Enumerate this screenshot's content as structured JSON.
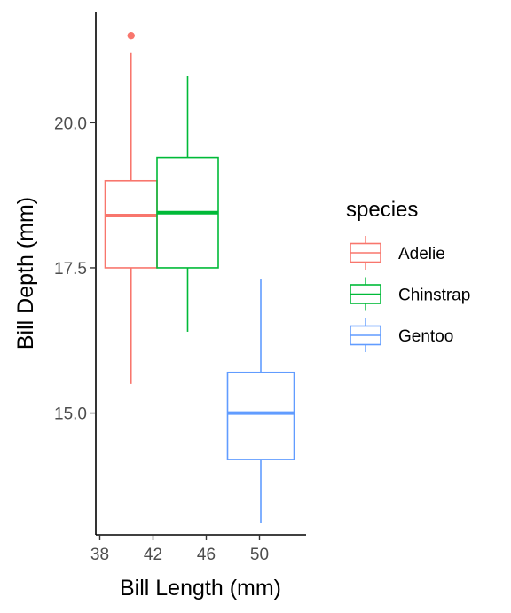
{
  "chart_data": {
    "type": "boxplot",
    "title": "",
    "xlabel": "Bill Length (mm)",
    "ylabel": "Bill Depth (mm)",
    "xlim": [
      37.7,
      53.5
    ],
    "ylim": [
      12.9,
      21.9
    ],
    "x_ticks": [
      {
        "value": 38,
        "label": "38"
      },
      {
        "value": 42,
        "label": "42"
      },
      {
        "value": 46,
        "label": "46"
      },
      {
        "value": 50,
        "label": "50"
      }
    ],
    "y_ticks": [
      {
        "value": 15.0,
        "label": "15.0"
      },
      {
        "value": 17.5,
        "label": "17.5"
      },
      {
        "value": 20.0,
        "label": "20.0"
      }
    ],
    "grid": false,
    "legend": {
      "title": "species",
      "position": "right"
    },
    "series": [
      {
        "name": "Adelie",
        "color": "#F8766D",
        "x_min": 38.4,
        "x_max": 42.3,
        "lower_whisker": 15.5,
        "q1": 17.5,
        "median": 18.4,
        "q3": 19.0,
        "upper_whisker": 21.2,
        "outliers": [
          21.5
        ]
      },
      {
        "name": "Chinstrap",
        "color": "#00BA38",
        "x_min": 42.3,
        "x_max": 46.9,
        "lower_whisker": 16.4,
        "q1": 17.5,
        "median": 18.45,
        "q3": 19.4,
        "upper_whisker": 20.8,
        "outliers": []
      },
      {
        "name": "Gentoo",
        "color": "#619CFF",
        "x_min": 47.6,
        "x_max": 52.6,
        "lower_whisker": 13.1,
        "q1": 14.2,
        "median": 15.0,
        "q3": 15.7,
        "upper_whisker": 17.3,
        "outliers": []
      }
    ]
  }
}
